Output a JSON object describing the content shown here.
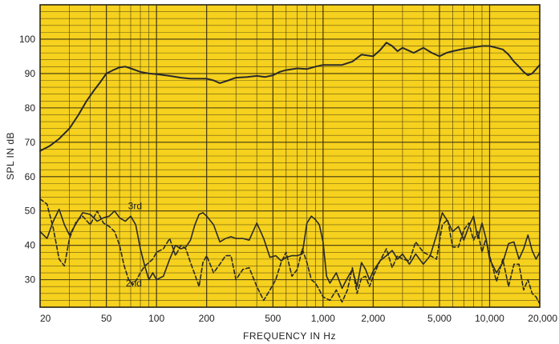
{
  "chart_data": {
    "type": "line",
    "xlabel": "FREQUENCY IN Hz",
    "ylabel": "SPL IN dB",
    "x_scale": "log",
    "xlim": [
      20,
      20000
    ],
    "ylim": [
      22,
      110
    ],
    "x_ticks": [
      {
        "value": 20,
        "label": "20"
      },
      {
        "value": 50,
        "label": "50"
      },
      {
        "value": 100,
        "label": "100"
      },
      {
        "value": 200,
        "label": "200"
      },
      {
        "value": 500,
        "label": "500"
      },
      {
        "value": 1000,
        "label": "1,000"
      },
      {
        "value": 2000,
        "label": "2,000"
      },
      {
        "value": 5000,
        "label": "5,000"
      },
      {
        "value": 10000,
        "label": "10,000"
      },
      {
        "value": 20000,
        "label": "20,000"
      }
    ],
    "y_ticks": [
      {
        "value": 30,
        "label": "30"
      },
      {
        "value": 40,
        "label": "40"
      },
      {
        "value": 50,
        "label": "50"
      },
      {
        "value": 60,
        "label": "60"
      },
      {
        "value": 70,
        "label": "70"
      },
      {
        "value": 80,
        "label": "80"
      },
      {
        "value": 90,
        "label": "90"
      },
      {
        "value": 100,
        "label": "100"
      }
    ],
    "grid": true,
    "background_color": "#f6d11d",
    "grid_color": "#3a2f10",
    "line_color": "#2a2a2a",
    "series": [
      {
        "style": "solid",
        "x": [
          20,
          23,
          26,
          30,
          34,
          38,
          42,
          46,
          50,
          55,
          60,
          65,
          70,
          80,
          90,
          100,
          120,
          140,
          160,
          180,
          200,
          220,
          240,
          270,
          300,
          350,
          400,
          450,
          500,
          550,
          600,
          700,
          800,
          900,
          1000,
          1100,
          1300,
          1500,
          1700,
          2000,
          2200,
          2400,
          2600,
          2800,
          3000,
          3500,
          4000,
          4500,
          5000,
          5500,
          6000,
          7000,
          8000,
          9000,
          10000,
          11000,
          12000,
          13000,
          14000,
          15000,
          16000,
          17000,
          18000,
          20000
        ],
        "y": [
          67.5,
          69,
          71,
          74,
          78,
          82,
          85,
          87.5,
          90,
          91,
          91.8,
          92,
          91.5,
          90.5,
          90,
          89.8,
          89.3,
          88.8,
          88.5,
          88.5,
          88.5,
          88,
          87.2,
          88,
          88.8,
          89,
          89.3,
          89,
          89.5,
          90.5,
          91,
          91.5,
          91.3,
          92,
          92.5,
          92.5,
          92.5,
          93.5,
          95.5,
          95,
          96.8,
          99,
          98,
          96.5,
          97.5,
          96,
          97.5,
          96,
          95,
          96,
          96.5,
          97.2,
          97.6,
          98,
          98,
          97.5,
          97,
          95.5,
          93.5,
          92,
          90.5,
          89.5,
          90,
          92.5
        ]
      },
      {
        "name": "3rd",
        "style": "solid",
        "x": [
          20,
          22,
          24,
          26,
          28,
          30,
          33,
          36,
          40,
          44,
          48,
          52,
          56,
          60,
          65,
          70,
          75,
          80,
          85,
          90,
          95,
          100,
          110,
          120,
          130,
          140,
          150,
          160,
          170,
          180,
          190,
          200,
          220,
          240,
          260,
          280,
          300,
          330,
          360,
          400,
          440,
          480,
          520,
          560,
          600,
          650,
          700,
          750,
          800,
          850,
          900,
          950,
          1000,
          1050,
          1100,
          1200,
          1300,
          1400,
          1500,
          1600,
          1700,
          1800,
          1900,
          2000,
          2200,
          2400,
          2600,
          2800,
          3000,
          3300,
          3600,
          4000,
          4400,
          4800,
          5200,
          5600,
          6000,
          6500,
          7000,
          7500,
          8000,
          8500,
          9000,
          9500,
          10000,
          11000,
          12000,
          13000,
          14000,
          15000,
          16000,
          17000,
          18000,
          19000,
          20000
        ],
        "y": [
          44,
          42,
          47,
          50.5,
          46,
          43,
          46.5,
          49.5,
          49,
          47,
          48,
          48.5,
          50,
          48,
          47,
          48.5,
          46,
          39,
          34,
          30,
          32,
          30,
          31,
          36,
          40,
          39,
          39.5,
          41.5,
          46,
          49,
          49.5,
          48.5,
          46,
          41,
          42,
          42.5,
          42,
          42,
          41.5,
          46.5,
          42,
          36.5,
          37,
          35.5,
          36.5,
          37,
          37,
          37.5,
          46.5,
          48.5,
          47.5,
          46,
          41,
          31,
          29,
          32,
          27.5,
          30.5,
          33,
          28,
          35,
          33,
          30,
          32.5,
          35.5,
          37,
          38.5,
          36,
          37.5,
          34.5,
          37.5,
          34.5,
          37,
          43,
          49.5,
          47,
          44,
          45.5,
          41.5,
          45.5,
          48.5,
          42,
          46.5,
          42,
          36,
          32,
          35,
          40.5,
          41,
          36,
          39,
          43,
          38.5,
          36,
          38
        ]
      },
      {
        "name": "2nd",
        "style": "dashed",
        "x": [
          20,
          22,
          24,
          26,
          28,
          30,
          33,
          36,
          40,
          44,
          48,
          52,
          56,
          60,
          64,
          68,
          72,
          76,
          80,
          85,
          90,
          95,
          100,
          110,
          120,
          130,
          140,
          150,
          160,
          170,
          180,
          190,
          200,
          220,
          240,
          260,
          280,
          300,
          330,
          360,
          400,
          440,
          480,
          520,
          560,
          600,
          650,
          700,
          750,
          800,
          850,
          900,
          950,
          1000,
          1100,
          1200,
          1300,
          1400,
          1500,
          1600,
          1700,
          1800,
          1900,
          2000,
          2200,
          2400,
          2600,
          2800,
          3000,
          3300,
          3600,
          4000,
          4400,
          4800,
          5200,
          5600,
          6000,
          6500,
          7000,
          7500,
          8000,
          8500,
          9000,
          9500,
          10000,
          11000,
          12000,
          13000,
          14000,
          15000,
          16000,
          17000,
          18000,
          19000,
          20000
        ],
        "y": [
          53.5,
          52,
          45,
          36,
          34,
          42,
          47,
          48.5,
          46,
          50,
          46.5,
          45.5,
          44,
          40,
          34,
          30,
          28.5,
          30,
          32,
          34,
          35,
          36,
          38,
          39,
          42,
          37,
          40,
          39,
          35,
          31.5,
          28,
          35,
          37,
          32,
          34.5,
          37,
          37,
          30,
          33,
          33.5,
          28,
          24,
          27,
          30,
          35,
          38,
          31,
          33,
          39,
          35,
          30,
          29,
          27,
          25,
          24,
          27,
          23.5,
          27,
          33.5,
          26,
          30.5,
          31,
          28,
          31,
          35.5,
          39,
          33.5,
          37,
          36,
          35.5,
          41,
          38,
          37,
          36,
          46,
          47.5,
          39.5,
          39.5,
          44.5,
          46.5,
          41.5,
          44,
          38,
          42,
          37,
          29.5,
          36,
          28,
          34.5,
          34.5,
          27,
          30,
          26,
          25,
          23
        ]
      }
    ]
  }
}
